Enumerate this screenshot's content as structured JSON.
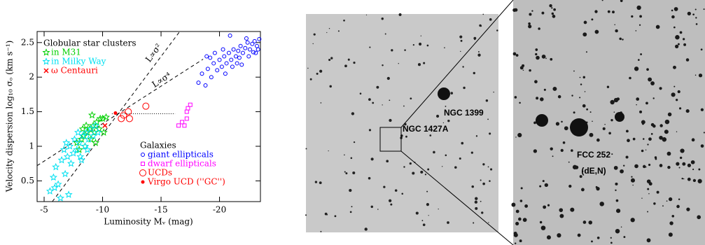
{
  "chart_data": {
    "type": "scatter",
    "xlabel": "Luminosity Mᵥ (mag)",
    "ylabel": "Velocity dispersion log₁₀ σₒ (km s⁻¹)",
    "xlim": [
      -4.4,
      -23.5
    ],
    "ylim": [
      0.2,
      2.66
    ],
    "xticks": [
      -5,
      -10,
      -15,
      -20
    ],
    "yticks": [
      0.5,
      1,
      1.5,
      2,
      2.5
    ],
    "lines": [
      {
        "label": "L∝σ²",
        "x": [
          -5.7,
          -16.6
        ],
        "y": [
          0.2,
          2.66
        ]
      },
      {
        "label": "L∝σ⁴",
        "x": [
          -4.4,
          -18.6
        ],
        "y": [
          0.72,
          2.26
        ]
      }
    ],
    "dotted_line": {
      "x": [
        -10.8,
        -16.2
      ],
      "y": [
        1.47,
        1.47
      ]
    },
    "groups": [
      {
        "title": "Globular star clusters",
        "series": [
          {
            "name": "in M31",
            "color": "#00d000",
            "marker": "star",
            "x": [
              -7.8,
              -8.0,
              -8.2,
              -8.4,
              -8.5,
              -8.7,
              -8.9,
              -9.0,
              -9.2,
              -9.3,
              -9.5,
              -9.7,
              -9.8,
              -10.0,
              -10.3,
              -9.1,
              -8.6,
              -8.3,
              -9.4,
              -10.1
            ],
            "values": [
              1.05,
              0.95,
              1.1,
              1.15,
              1.0,
              1.2,
              1.25,
              1.1,
              1.3,
              1.2,
              1.35,
              1.25,
              1.4,
              1.4,
              1.42,
              1.45,
              1.3,
              1.25,
              1.05,
              1.2
            ]
          },
          {
            "name": "in Milky Way",
            "color": "#00e0f0",
            "marker": "star",
            "x": [
              -5.5,
              -5.8,
              -6.0,
              -6.2,
              -6.5,
              -6.7,
              -6.8,
              -7.0,
              -7.2,
              -7.3,
              -7.5,
              -7.6,
              -7.8,
              -8.0,
              -8.1,
              -8.3,
              -8.5,
              -8.6,
              -8.8,
              -9.0,
              -9.2,
              -9.4,
              -7.1,
              -6.4,
              -5.9,
              -8.7,
              -9.6,
              -7.9,
              -6.9,
              -8.2
            ],
            "values": [
              0.35,
              0.55,
              0.7,
              0.45,
              0.8,
              0.95,
              0.6,
              0.85,
              1.0,
              0.75,
              0.9,
              1.1,
              0.95,
              1.05,
              0.85,
              1.15,
              1.0,
              1.2,
              1.1,
              1.25,
              1.15,
              1.3,
              0.3,
              0.25,
              0.4,
              0.95,
              1.2,
              1.2,
              1.05,
              0.8
            ]
          },
          {
            "name": "ω Centauri",
            "color": "#ff0000",
            "marker": "cross",
            "x": [
              -10.2
            ],
            "values": [
              1.3
            ]
          }
        ]
      },
      {
        "title": "Galaxies",
        "series": [
          {
            "name": "giant ellipticals",
            "color": "#0000ff",
            "marker": "circle-open",
            "x": [
              -18.2,
              -18.5,
              -18.8,
              -19.0,
              -19.3,
              -19.5,
              -19.8,
              -20.0,
              -20.2,
              -20.4,
              -20.6,
              -20.8,
              -21.0,
              -21.2,
              -21.4,
              -21.6,
              -21.8,
              -22.0,
              -22.2,
              -22.4,
              -22.6,
              -22.8,
              -23.0,
              -23.2,
              -23.4,
              -21.5,
              -22.5,
              -20.5,
              -19.2,
              -21.9,
              -22.9,
              -23.3,
              -18.9,
              -20.9,
              -21.7,
              -22.3,
              -23.1,
              -19.6,
              -20.3,
              -21.1
            ],
            "values": [
              1.92,
              2.05,
              1.88,
              2.12,
              2.0,
              2.2,
              2.1,
              2.25,
              2.15,
              2.3,
              2.2,
              2.35,
              2.25,
              2.4,
              2.3,
              2.38,
              2.45,
              2.35,
              2.42,
              2.5,
              2.4,
              2.48,
              2.52,
              2.45,
              2.55,
              2.2,
              2.3,
              2.05,
              2.28,
              2.18,
              2.36,
              2.4,
              2.3,
              2.6,
              2.28,
              2.56,
              2.35,
              2.35,
              2.4,
              2.15
            ]
          },
          {
            "name": "dwarf ellipticals",
            "color": "#ff00ff",
            "marker": "square-open",
            "x": [
              -16.5,
              -16.8,
              -17.0,
              -17.2,
              -17.3,
              -17.5,
              -17.2
            ],
            "values": [
              1.3,
              1.35,
              1.3,
              1.4,
              1.55,
              1.6,
              1.5
            ]
          },
          {
            "name": "UCDs",
            "color": "#ff0000",
            "marker": "circle-big",
            "x": [
              -11.8,
              -12.2,
              -12.3,
              -11.6,
              -13.7
            ],
            "values": [
              1.45,
              1.5,
              1.4,
              1.4,
              1.58
            ]
          },
          {
            "name": "Virgo UCD (''GC'')",
            "color": "#ff0000",
            "marker": "circle-filled",
            "x": [
              -11.1
            ],
            "values": [
              1.48
            ]
          }
        ]
      }
    ]
  },
  "images": {
    "labels": [
      "NGC 1399",
      "NGC 1427A",
      "FCC 252",
      "(dE,N)"
    ]
  }
}
